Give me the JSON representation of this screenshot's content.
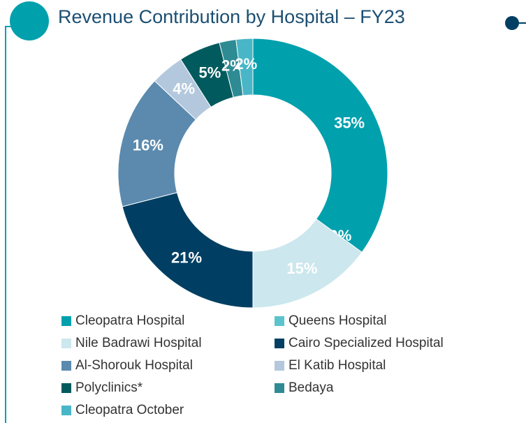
{
  "chart_data": {
    "type": "donut",
    "title": "Revenue Contribution by Hospital – FY23",
    "categories": [
      "Cleopatra Hospital",
      "Queens Hospital",
      "Nile Badrawi Hospital",
      "Cairo Specialized Hospital",
      "Al-Shorouk Hospital",
      "El Katib Hospital",
      "Polyclinics*",
      "Bedaya",
      "Cleopatra October"
    ],
    "values": [
      35,
      0,
      15,
      21,
      16,
      4,
      5,
      2,
      2
    ],
    "value_labels": [
      "35%",
      "0%",
      "15%",
      "21%",
      "16%",
      "4%",
      "5%",
      "2%",
      "2%"
    ],
    "colors": [
      "#00a0ad",
      "#5bc3cc",
      "#cce7ee",
      "#003f63",
      "#5b8aae",
      "#b4c8dd",
      "#005a5e",
      "#2e8b94",
      "#48b6c7"
    ],
    "legend": "bottom"
  }
}
